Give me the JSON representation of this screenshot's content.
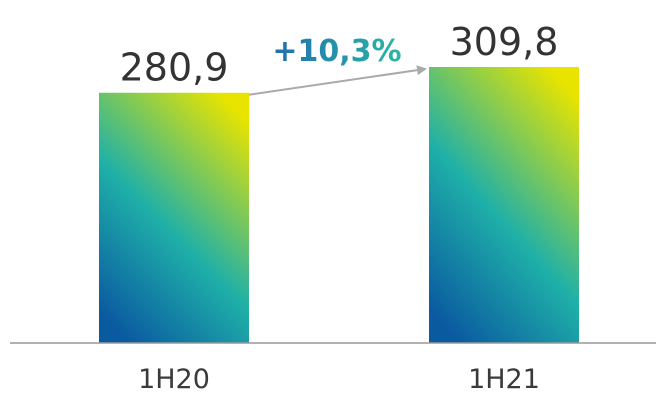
{
  "chart_data": {
    "type": "bar",
    "categories": [
      "1H20",
      "1H21"
    ],
    "values": [
      280.9,
      309.8
    ],
    "value_labels": [
      "280,9",
      "309,8"
    ],
    "ylim": [
      0,
      309.8
    ],
    "grid": false,
    "legend": "none",
    "annotation": {
      "label": "+10,3%",
      "from_category": "1H20",
      "to_category": "1H21",
      "style": "arrow"
    }
  },
  "colors": {
    "bar_gradient_top": "#e8e400",
    "bar_gradient_mid": "#1fb0a8",
    "bar_gradient_bottom": "#0a5aa0",
    "growth_gradient_start": "#1e6fb0",
    "growth_gradient_end": "#2cb7a4",
    "axis": "#999999",
    "arrow": "#aaaaaa",
    "value_text": "#333333"
  }
}
